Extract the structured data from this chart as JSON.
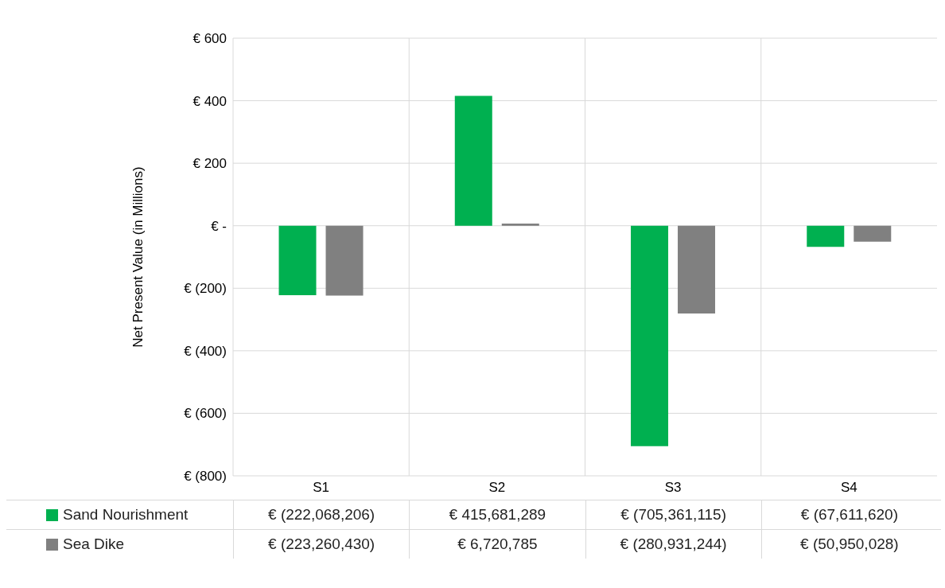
{
  "chart_data": {
    "type": "bar",
    "ylabel": "Net Present Value (in Millions)",
    "categories": [
      "S1",
      "S2",
      "S3",
      "S4"
    ],
    "series": [
      {
        "name": "Sand Nourishment",
        "color": "#00b050",
        "values": [
          -222.068206,
          415.681289,
          -705.361115,
          -67.61162
        ]
      },
      {
        "name": "Sea Dike",
        "color": "#808080",
        "values": [
          -223.26043,
          6.720785,
          -280.931244,
          -50.950028
        ]
      }
    ],
    "annotations": [
      "€ (222,068,206)",
      "€ 415,681,289",
      "€ (705,361,115)",
      "€ (67,611,620)",
      "€ (223,260,430)",
      "€ 6,720,785",
      "€ (280,931,244)",
      "€ (50,950,028)"
    ],
    "ylim": [
      -800,
      600
    ],
    "yticks": [
      {
        "value": 600,
        "label": "€ 600"
      },
      {
        "value": 400,
        "label": "€ 400"
      },
      {
        "value": 200,
        "label": "€ 200"
      },
      {
        "value": 0,
        "label": "€ -"
      },
      {
        "value": -200,
        "label": "€ (200)"
      },
      {
        "value": -400,
        "label": "€ (400)"
      },
      {
        "value": -600,
        "label": "€ (600)"
      },
      {
        "value": -800,
        "label": "€ (800)"
      }
    ],
    "grid": true,
    "legend": "bottom"
  }
}
